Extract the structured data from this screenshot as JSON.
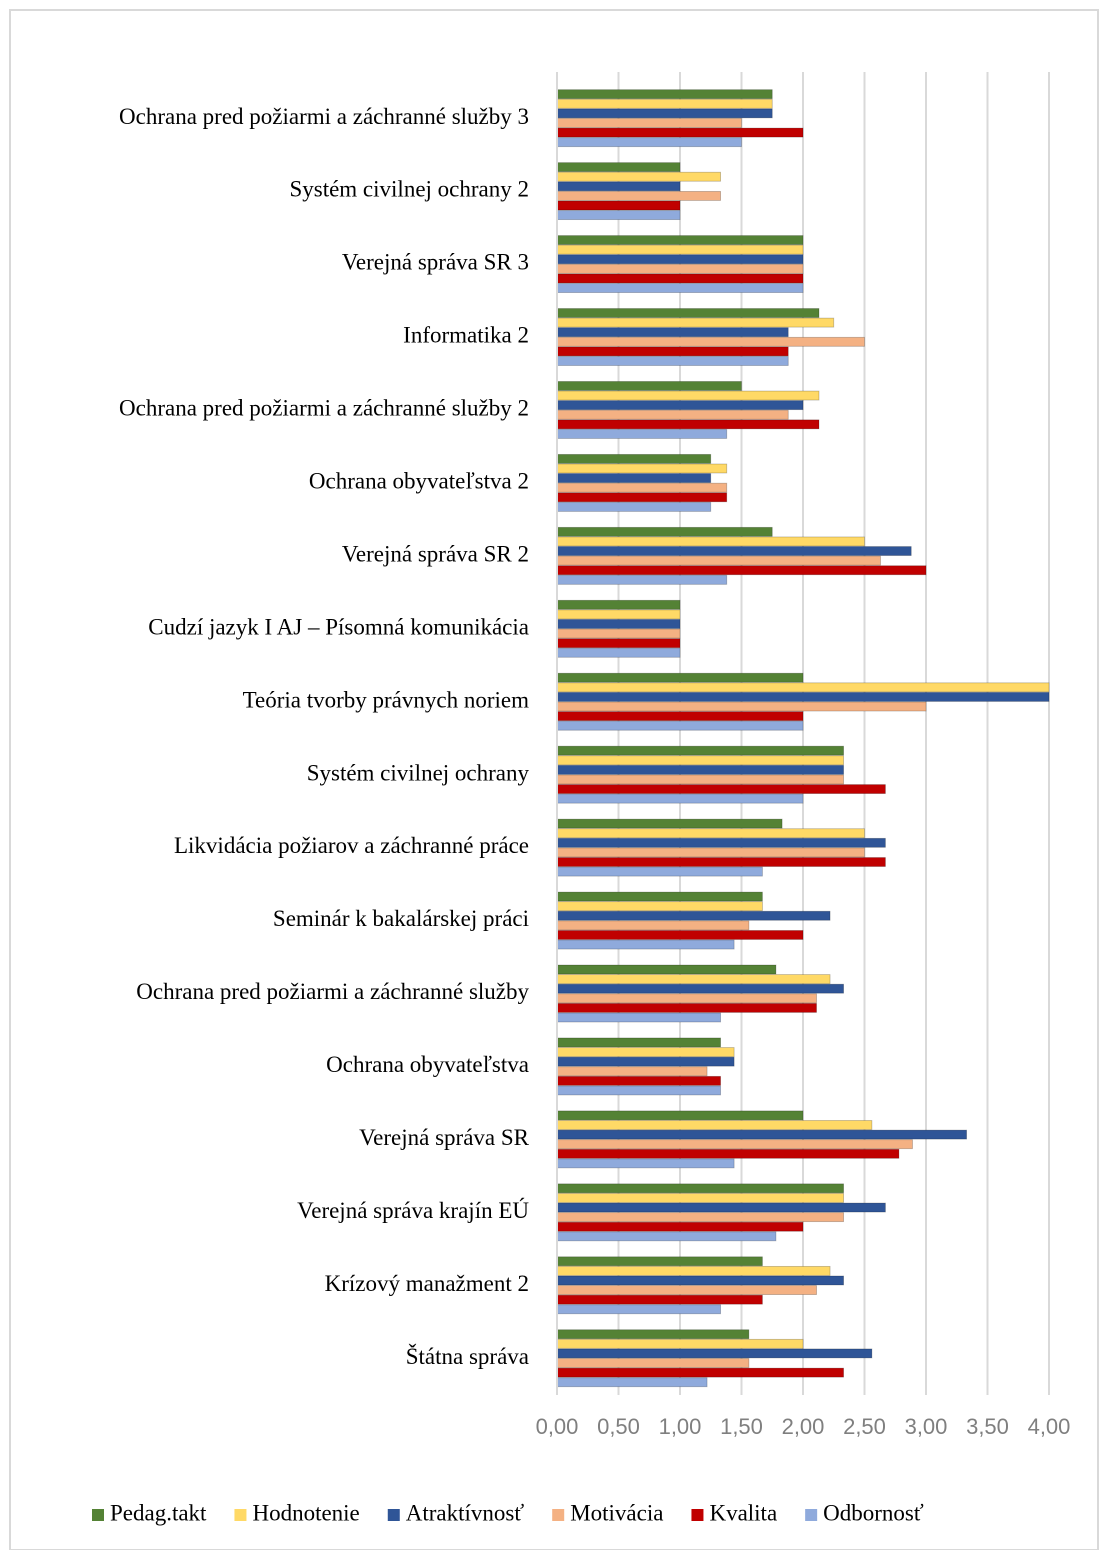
{
  "chart_data": {
    "type": "bar",
    "orientation": "horizontal",
    "categories": [
      "Ochrana pred požiarmi a záchranné služby 3",
      "Systém civilnej ochrany 2",
      "Verejná správa SR 3",
      "Informatika 2",
      "Ochrana pred požiarmi a záchranné služby 2",
      "Ochrana obyvateľstva 2",
      "Verejná správa SR 2",
      "Cudzí jazyk  I AJ – Písomná komunikácia",
      "Teória tvorby právnych noriem",
      "Systém civilnej ochrany",
      "Likvidácia požiarov a záchranné práce",
      "Seminár k bakalárskej práci",
      "Ochrana pred požiarmi a záchranné služby",
      "Ochrana obyvateľstva",
      "Verejná správa SR",
      "Verejná správa krajín EÚ",
      "Krízový manažment 2",
      "Štátna správa"
    ],
    "series": [
      {
        "name": "Pedag.takt",
        "color": "#548235",
        "values": [
          1.75,
          1.0,
          2.0,
          2.13,
          1.5,
          1.25,
          1.75,
          1.0,
          2.0,
          2.33,
          1.83,
          1.67,
          1.78,
          1.33,
          2.0,
          2.33,
          1.67,
          1.56
        ]
      },
      {
        "name": "Hodnotenie",
        "color": "#ffd966",
        "values": [
          1.75,
          1.33,
          2.0,
          2.25,
          2.13,
          1.38,
          2.5,
          1.0,
          4.0,
          2.33,
          2.5,
          1.67,
          2.22,
          1.44,
          2.56,
          2.33,
          2.22,
          2.0
        ]
      },
      {
        "name": "Atraktívnosť",
        "color": "#2f5597",
        "values": [
          1.75,
          1.0,
          2.0,
          1.88,
          2.0,
          1.25,
          2.88,
          1.0,
          4.0,
          2.33,
          2.67,
          2.22,
          2.33,
          1.44,
          3.33,
          2.67,
          2.33,
          2.56
        ]
      },
      {
        "name": "Motivácia",
        "color": "#f4b183",
        "values": [
          1.5,
          1.33,
          2.0,
          2.5,
          1.88,
          1.38,
          2.63,
          1.0,
          3.0,
          2.33,
          2.5,
          1.56,
          2.11,
          1.22,
          2.89,
          2.33,
          2.11,
          1.56
        ]
      },
      {
        "name": "Kvalita",
        "color": "#c00000",
        "values": [
          2.0,
          1.0,
          2.0,
          1.88,
          2.13,
          1.38,
          3.0,
          1.0,
          2.0,
          2.67,
          2.67,
          2.0,
          2.11,
          1.33,
          2.78,
          2.0,
          1.67,
          2.33
        ]
      },
      {
        "name": "Odbornosť",
        "color": "#8faadc",
        "values": [
          1.5,
          1.0,
          2.0,
          1.88,
          1.38,
          1.25,
          1.38,
          1.0,
          2.0,
          2.0,
          1.67,
          1.44,
          1.33,
          1.33,
          1.44,
          1.78,
          1.33,
          1.22
        ]
      }
    ],
    "xlim": [
      0,
      4
    ],
    "xticks": [
      {
        "value": 0,
        "label": "0,00"
      },
      {
        "value": 0.5,
        "label": "0,50"
      },
      {
        "value": 1,
        "label": "1,00"
      },
      {
        "value": 1.5,
        "label": "1,50"
      },
      {
        "value": 2,
        "label": "2,00"
      },
      {
        "value": 2.5,
        "label": "2,50"
      },
      {
        "value": 3,
        "label": "3,00"
      },
      {
        "value": 3.5,
        "label": "3,50"
      },
      {
        "value": 4,
        "label": "4,00"
      }
    ],
    "grid": true,
    "legend": "bottom"
  }
}
